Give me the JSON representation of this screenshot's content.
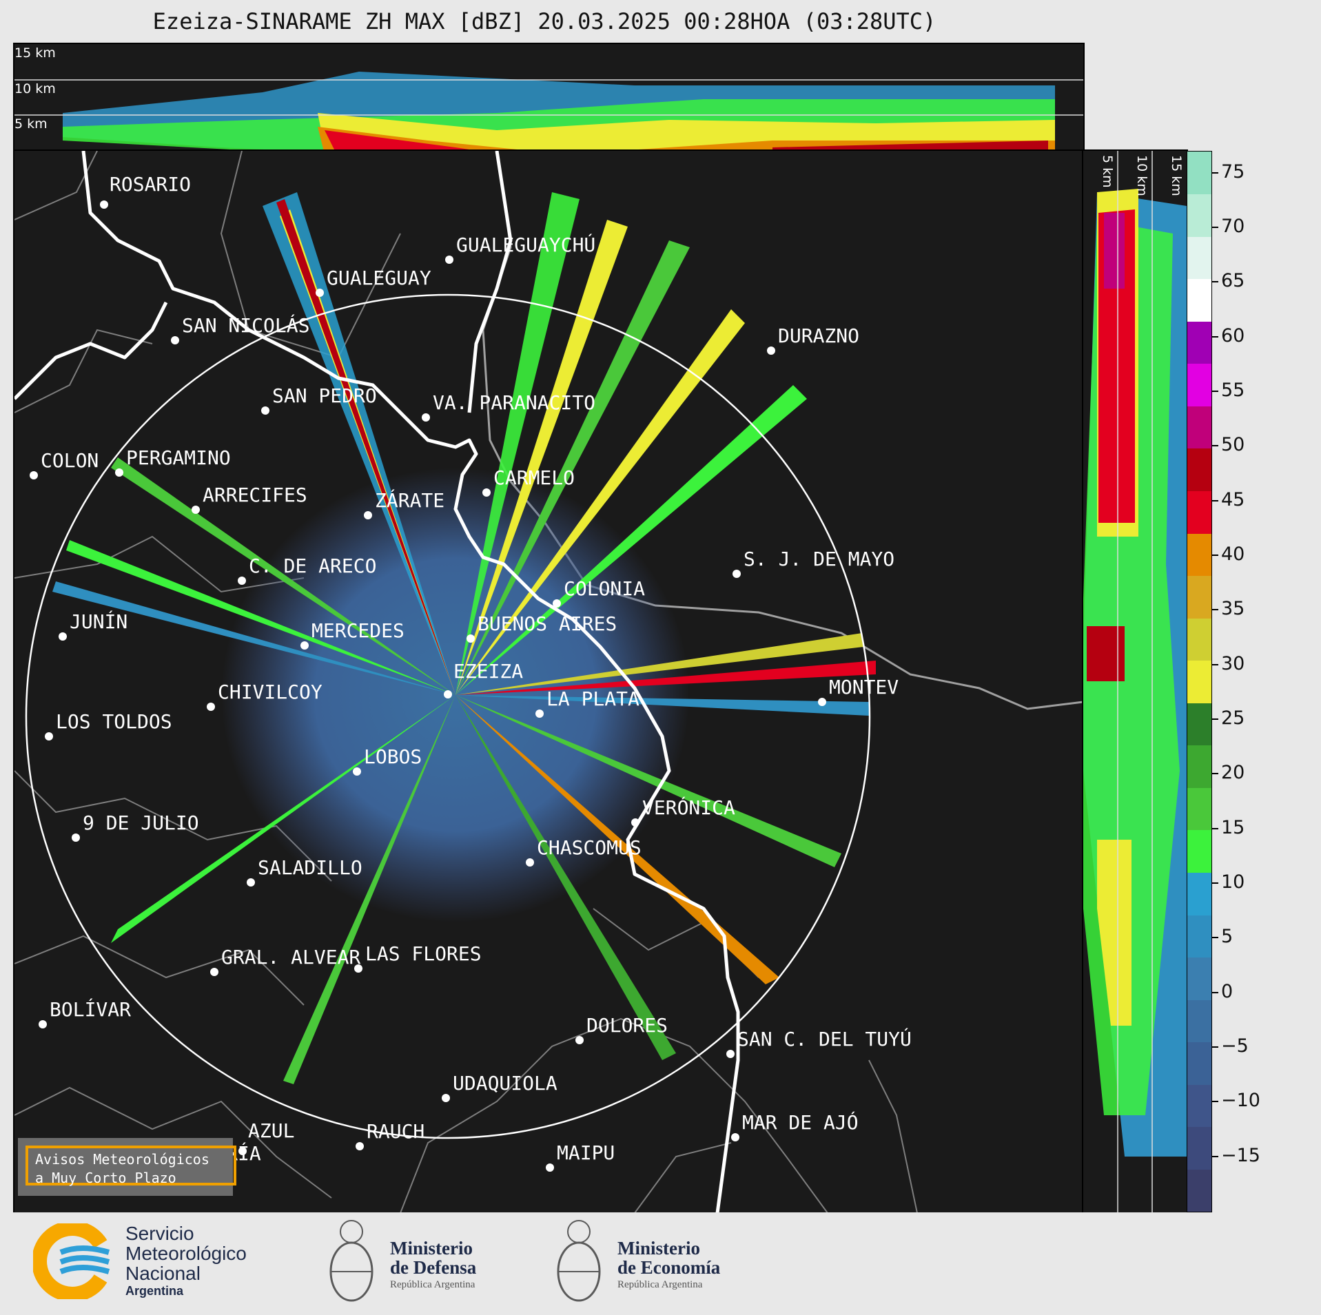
{
  "title": "Ezeiza-SINARAME ZH MAX [dBZ] 20.03.2025 00:28HOA (03:28UTC)",
  "top_panel": {
    "height_labels": [
      "15 km",
      "10 km",
      "5 km"
    ]
  },
  "side_panel": {
    "height_labels": [
      "5 km",
      "10 km",
      "15 km"
    ]
  },
  "colorbar": {
    "unit": "dBZ",
    "ticks": [
      "75",
      "70",
      "65",
      "60",
      "55",
      "50",
      "45",
      "40",
      "35",
      "30",
      "25",
      "20",
      "15",
      "10",
      "5",
      "0",
      "−5",
      "−10",
      "−15"
    ],
    "colors": [
      "#3b3f6a",
      "#3d4a7c",
      "#3f558a",
      "#3b6296",
      "#3b70a2",
      "#3b7fb0",
      "#2f8fc0",
      "#2aa0d0",
      "#3cf23c",
      "#4ac83a",
      "#3da830",
      "#2c7f2a",
      "#ecec34",
      "#cfcf32",
      "#d9a820",
      "#e58a00",
      "#e3001f",
      "#b50010",
      "#c0007a",
      "#e200e2",
      "#a000b4",
      "#ffffff",
      "#e2f4ee",
      "#b9ecd6",
      "#92e0c2"
    ],
    "scale_min": -20,
    "scale_max": 77
  },
  "cities": [
    {
      "name": "ROSARIO"
    },
    {
      "name": "GUALEGUAYCHÚ"
    },
    {
      "name": "GUALEGUAY"
    },
    {
      "name": "SAN NICOLÁS"
    },
    {
      "name": "DURAZNO"
    },
    {
      "name": "SAN PEDRO"
    },
    {
      "name": "VA. PARANACITO"
    },
    {
      "name": "COLON"
    },
    {
      "name": "PERGAMINO"
    },
    {
      "name": "CARMELO"
    },
    {
      "name": "ARRECIFES"
    },
    {
      "name": "ZÁRATE"
    },
    {
      "name": "S. J. DE MAYO"
    },
    {
      "name": "C. DE ARECO"
    },
    {
      "name": "COLONIA"
    },
    {
      "name": "JUNÍN"
    },
    {
      "name": "MERCEDES"
    },
    {
      "name": "BUENOS AIRES"
    },
    {
      "name": "EZEIZA"
    },
    {
      "name": "MONTEV"
    },
    {
      "name": "CHIVILCOY"
    },
    {
      "name": "LA PLATA"
    },
    {
      "name": "LOS TOLDOS"
    },
    {
      "name": "LOBOS"
    },
    {
      "name": "VERÓNICA"
    },
    {
      "name": "9 DE JULIO"
    },
    {
      "name": "CHASCOMUS"
    },
    {
      "name": "SALADILLO"
    },
    {
      "name": "GRAL. ALVEAR"
    },
    {
      "name": "LAS FLORES"
    },
    {
      "name": "BOLÍVAR"
    },
    {
      "name": "DOLORES"
    },
    {
      "name": "SAN C. DEL TUYÚ"
    },
    {
      "name": "UDAQUIOLA"
    },
    {
      "name": "MAR DE AJÓ"
    },
    {
      "name": "AZUL"
    },
    {
      "name": "RAUCH"
    },
    {
      "name": "OLAVARRÍA"
    },
    {
      "name": "MAIPU"
    }
  ],
  "warning_box": {
    "line1": "Avisos Meteorológicos",
    "line2": "a Muy Corto Plazo"
  },
  "logos": {
    "smn": {
      "line1": "Servicio",
      "line2": "Meteorológico",
      "line3": "Nacional",
      "line4": "Argentina"
    },
    "defensa": {
      "line1": "Ministerio",
      "line2": "de Defensa",
      "line3": "República Argentina"
    },
    "economia": {
      "line1": "Ministerio",
      "line2": "de Economía",
      "line3": "República Argentina"
    }
  },
  "accent_colors": {
    "range_ring": "#ffffff",
    "coast": "#ffffff",
    "borders": "#8a8a8a",
    "warning_border": "#f0a000",
    "smn_yellow": "#f7a800",
    "smn_blue": "#2e9fd8"
  }
}
